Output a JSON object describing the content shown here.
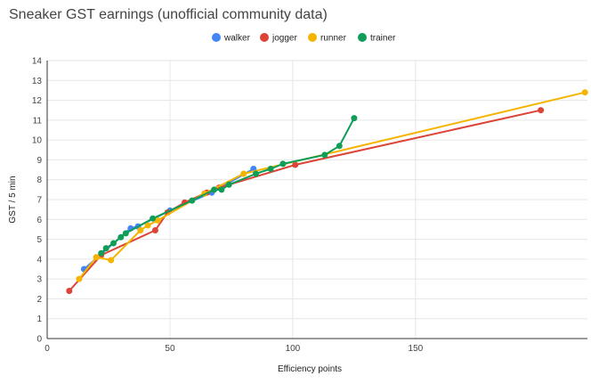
{
  "chart_data": {
    "type": "line",
    "title": "Sneaker GST earnings (unofficial community data)",
    "xlabel": "Efficiency points",
    "ylabel": "GST / 5 min",
    "xlim": [
      0,
      220
    ],
    "ylim": [
      0,
      14
    ],
    "x_ticks": [
      0,
      50,
      100,
      150
    ],
    "y_ticks": [
      0,
      1,
      2,
      3,
      4,
      5,
      6,
      7,
      8,
      9,
      10,
      11,
      12,
      13,
      14
    ],
    "grid": true,
    "legend_position": "top",
    "series": [
      {
        "name": "walker",
        "color": "#4285f4",
        "points": [
          [
            15,
            3.5
          ],
          [
            34,
            5.55
          ],
          [
            37,
            5.65
          ],
          [
            50,
            6.45
          ],
          [
            67,
            7.35
          ],
          [
            84,
            8.55
          ]
        ]
      },
      {
        "name": "jogger",
        "color": "#db4437",
        "points": [
          [
            9,
            2.4
          ],
          [
            22,
            4.2
          ],
          [
            44,
            5.45
          ],
          [
            49,
            6.35
          ],
          [
            56,
            6.85
          ],
          [
            65,
            7.35
          ],
          [
            70,
            7.6
          ],
          [
            101,
            8.75
          ],
          [
            201,
            11.5
          ]
        ]
      },
      {
        "name": "runner",
        "color": "#f4b400",
        "points": [
          [
            13,
            3.0
          ],
          [
            20,
            4.1
          ],
          [
            26,
            3.95
          ],
          [
            38,
            5.45
          ],
          [
            41,
            5.7
          ],
          [
            45,
            5.95
          ],
          [
            64,
            7.3
          ],
          [
            80,
            8.3
          ],
          [
            219,
            12.4
          ]
        ]
      },
      {
        "name": "trainer",
        "color": "#0f9d58",
        "points": [
          [
            22,
            4.3
          ],
          [
            24,
            4.55
          ],
          [
            27,
            4.8
          ],
          [
            30,
            5.1
          ],
          [
            32,
            5.3
          ],
          [
            43,
            6.05
          ],
          [
            59,
            6.95
          ],
          [
            68,
            7.5
          ],
          [
            71,
            7.5
          ],
          [
            74,
            7.75
          ],
          [
            85,
            8.3
          ],
          [
            91,
            8.55
          ],
          [
            96,
            8.8
          ],
          [
            113,
            9.25
          ],
          [
            119,
            9.7
          ],
          [
            125,
            11.1
          ]
        ]
      }
    ]
  }
}
